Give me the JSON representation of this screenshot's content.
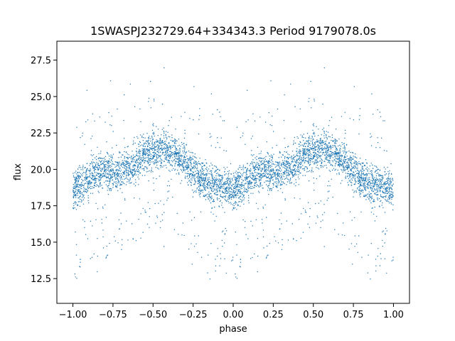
{
  "chart_data": {
    "type": "scatter",
    "title": "1SWASPJ232729.64+334343.3 Period 9179078.0s",
    "xlabel": "phase",
    "ylabel": "flux",
    "xlim": [
      -1.1,
      1.1
    ],
    "ylim": [
      10.8,
      28.8
    ],
    "xticks": [
      -1.0,
      -0.75,
      -0.5,
      -0.25,
      0.0,
      0.25,
      0.5,
      0.75,
      1.0
    ],
    "xtick_labels": [
      "−1.00",
      "−0.75",
      "−0.50",
      "−0.25",
      "0.00",
      "0.25",
      "0.50",
      "0.75",
      "1.00"
    ],
    "yticks": [
      12.5,
      15.0,
      17.5,
      20.0,
      22.5,
      25.0,
      27.5
    ],
    "ytick_labels": [
      "12.5",
      "15.0",
      "17.5",
      "20.0",
      "22.5",
      "25.0",
      "27.5"
    ],
    "grid": false,
    "marker_color": "#1f77b4",
    "series": [
      {
        "trend_phase": [
          0.0,
          0.05,
          0.1,
          0.15,
          0.2,
          0.25,
          0.3,
          0.35,
          0.4,
          0.45,
          0.5,
          0.55,
          0.6,
          0.65,
          0.7,
          0.75,
          0.8,
          0.85,
          0.9,
          0.95,
          1.0
        ],
        "trend_flux": [
          18.6,
          19.0,
          19.5,
          19.8,
          19.9,
          19.8,
          19.9,
          20.2,
          20.6,
          21.0,
          21.3,
          21.4,
          21.3,
          21.0,
          20.5,
          19.9,
          19.3,
          19.0,
          18.9,
          18.8,
          18.7
        ],
        "mirrored_at_phase_minus_one": true
      }
    ]
  }
}
